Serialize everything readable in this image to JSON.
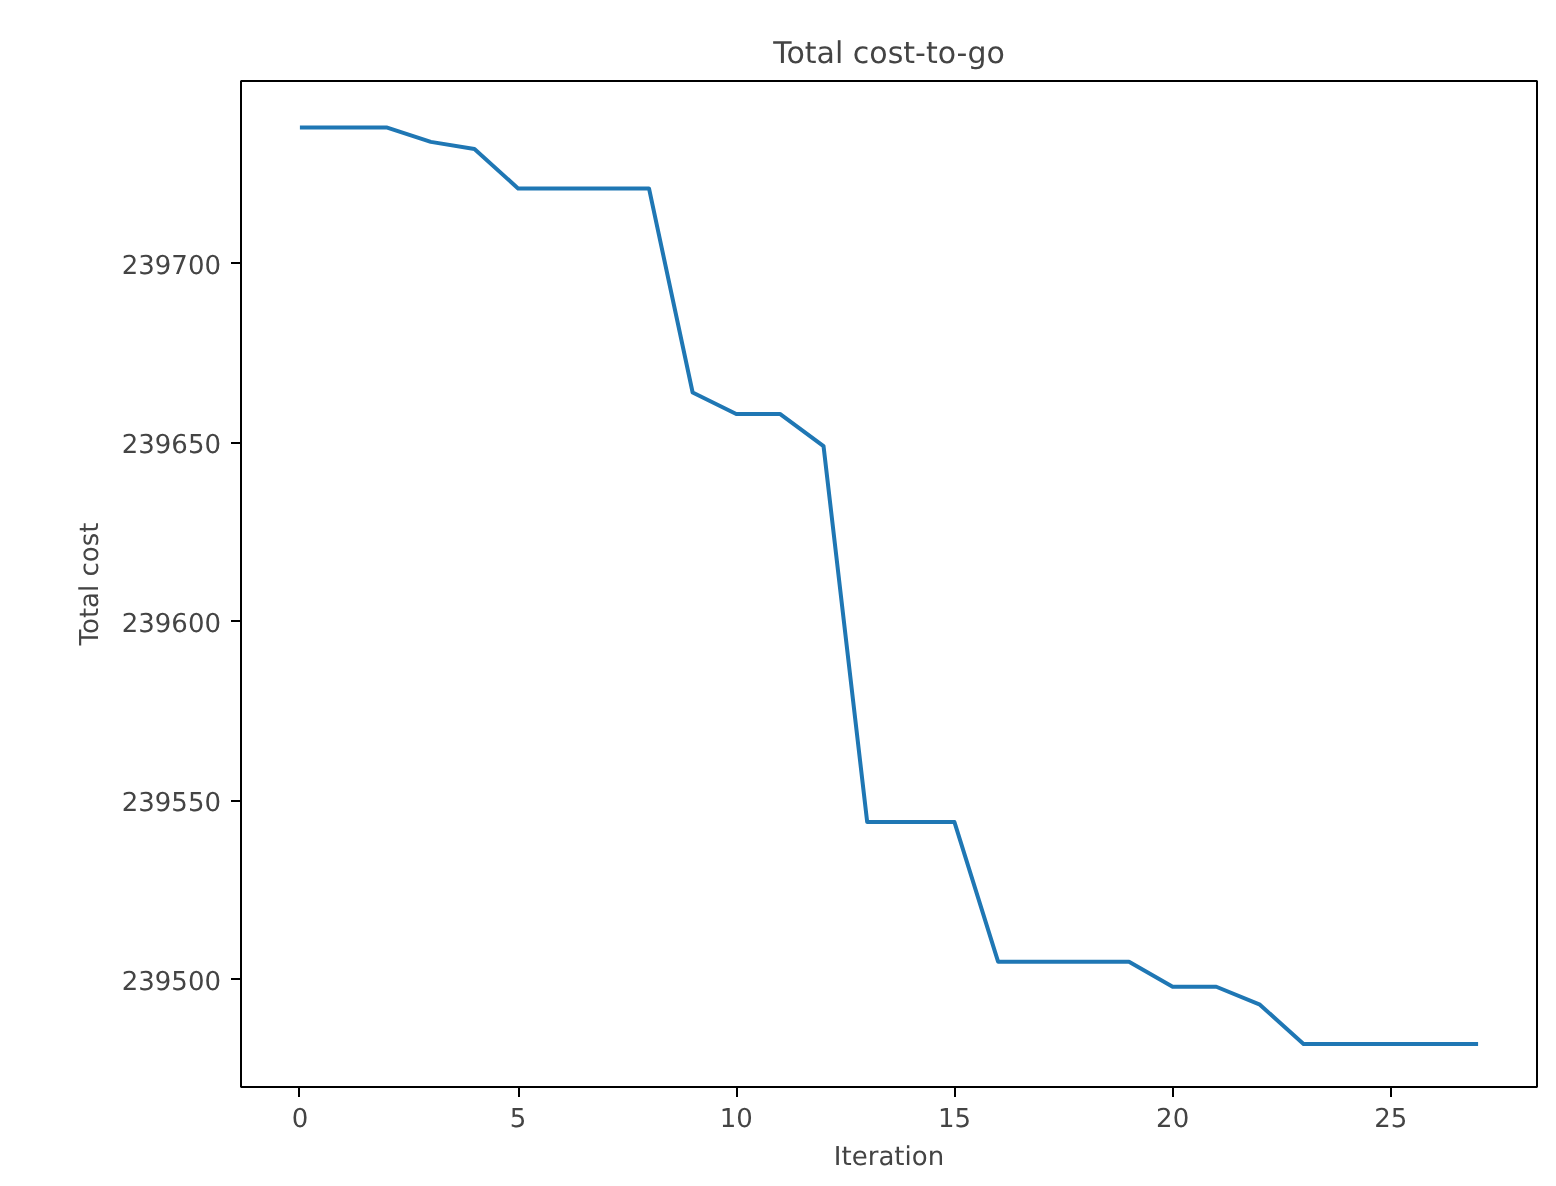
{
  "chart_data": {
    "type": "line",
    "title": "Total cost-to-go",
    "xlabel": "Iteration",
    "ylabel": "Total cost",
    "x": [
      0,
      1,
      2,
      3,
      4,
      5,
      6,
      7,
      8,
      9,
      10,
      11,
      12,
      13,
      14,
      15,
      16,
      17,
      18,
      19,
      20,
      21,
      22,
      23,
      24,
      25,
      26,
      27
    ],
    "series": [
      {
        "color": "#1f77b4",
        "values": [
          239738,
          239738,
          239738,
          239734,
          239732,
          239721,
          239721,
          239721,
          239721,
          239664,
          239658,
          239658,
          239649,
          239544,
          239544,
          239544,
          239505,
          239505,
          239505,
          239505,
          239498,
          239498,
          239493,
          239482,
          239482,
          239482,
          239482,
          239482
        ]
      }
    ],
    "xlim": [
      -1.35,
      28.35
    ],
    "ylim": [
      239470,
      239751
    ],
    "xticks": [
      0,
      5,
      10,
      15,
      20,
      25
    ],
    "yticks": [
      239500,
      239550,
      239600,
      239650,
      239700
    ],
    "marker": "none",
    "line_style": "solid"
  }
}
